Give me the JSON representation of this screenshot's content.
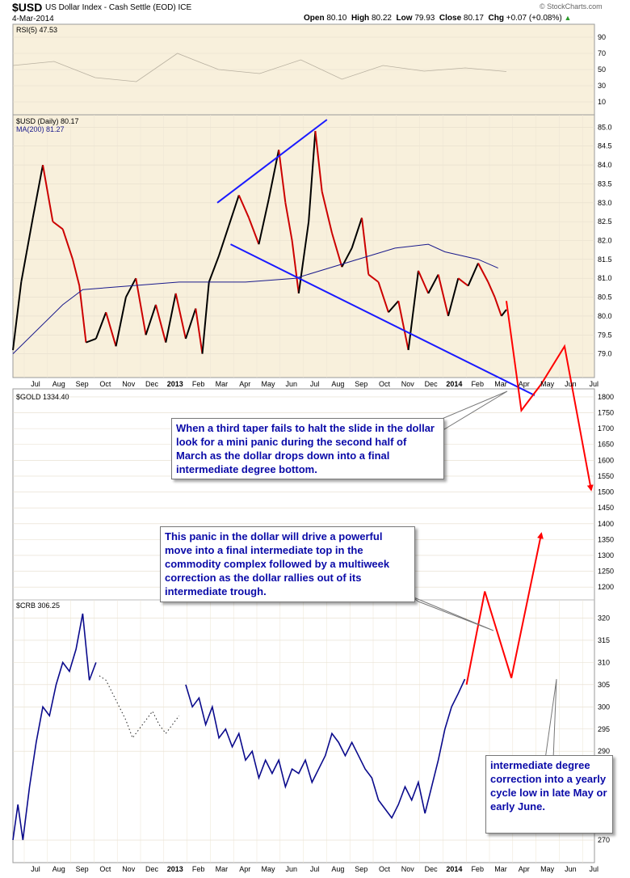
{
  "header": {
    "symbol": "$USD",
    "description": "US Dollar Index - Cash Settle (EOD) ICE",
    "date": "4-Mar-2014",
    "open_label": "Open",
    "open_value": "80.10",
    "high_label": "High",
    "high_value": "80.22",
    "low_label": "Low",
    "low_value": "79.93",
    "close_label": "Close",
    "close_value": "80.17",
    "chg_label": "Chg",
    "chg_value": "+0.07 (+0.08%)",
    "brand": "© StockCharts.com"
  },
  "colors": {
    "price_up": "#000000",
    "price_down": "#cc0000",
    "ma_line": "#1a1a8c",
    "crb_line": "#0a0a8c",
    "trendline": "#1a1aff",
    "projection": "#ff0000",
    "panel_bg": "#f8f0dc",
    "callout_text": "#0a0aa8"
  },
  "callouts": {
    "taper": "When a third taper fails to halt the slide in the dollar look for a mini panic during the second half of March as the dollar drops down into a final intermediate degree bottom.",
    "panic": "This panic in the dollar will drive a powerful move into a final intermediate top in the commodity complex followed by a multiweek correction as the dollar rallies out of its intermediate trough.",
    "correction": "intermediate degree correction into a yearly cycle low in late May or early June."
  },
  "chart_data": [
    {
      "type": "line",
      "panel": "rsi",
      "legend": "RSI(5) 47.53",
      "ylim": [
        0,
        100
      ],
      "y_ticks": [
        "90",
        "70",
        "50",
        "30",
        "10"
      ],
      "series": [
        {
          "values": [
            55,
            60,
            40,
            35,
            70,
            50,
            45,
            62,
            38,
            55,
            48,
            52,
            47.53
          ]
        }
      ]
    },
    {
      "type": "line",
      "panel": "usd",
      "legend": [
        "$USD (Daily) 80.17",
        "MA(200) 81.27"
      ],
      "ylim": [
        78.5,
        85.2
      ],
      "y_ticks": [
        "85.0",
        "84.5",
        "84.0",
        "83.5",
        "83.0",
        "82.5",
        "82.0",
        "81.5",
        "81.0",
        "80.5",
        "80.0",
        "79.5",
        "79.0"
      ],
      "x_ticks": [
        "Jul",
        "Aug",
        "Sep",
        "Oct",
        "Nov",
        "Dec",
        "2013",
        "Feb",
        "Mar",
        "Apr",
        "May",
        "Jun",
        "Jul",
        "Aug",
        "Sep",
        "Oct",
        "Nov",
        "Dec",
        "2014",
        "Feb",
        "Mar",
        "Apr",
        "May",
        "Jun",
        "Jul"
      ],
      "series": [
        {
          "name": "$USD",
          "values": [
            [
              0,
              79.1
            ],
            [
              5,
              80.9
            ],
            [
              12,
              82.6
            ],
            [
              18,
              84.0
            ],
            [
              24,
              82.5
            ],
            [
              30,
              82.3
            ],
            [
              36,
              81.5
            ],
            [
              40,
              80.8
            ],
            [
              44,
              79.3
            ],
            [
              50,
              79.4
            ],
            [
              56,
              80.1
            ],
            [
              62,
              79.2
            ],
            [
              68,
              80.5
            ],
            [
              74,
              81.0
            ],
            [
              80,
              79.5
            ],
            [
              86,
              80.3
            ],
            [
              92,
              79.3
            ],
            [
              98,
              80.6
            ],
            [
              104,
              79.4
            ],
            [
              110,
              80.2
            ],
            [
              114,
              79.0
            ],
            [
              118,
              80.9
            ],
            [
              124,
              81.6
            ],
            [
              130,
              82.4
            ],
            [
              136,
              83.2
            ],
            [
              142,
              82.6
            ],
            [
              148,
              81.9
            ],
            [
              154,
              83.1
            ],
            [
              160,
              84.4
            ],
            [
              164,
              83.0
            ],
            [
              168,
              82.0
            ],
            [
              172,
              80.6
            ],
            [
              178,
              82.5
            ],
            [
              182,
              84.9
            ],
            [
              186,
              83.3
            ],
            [
              192,
              82.2
            ],
            [
              198,
              81.3
            ],
            [
              204,
              81.8
            ],
            [
              210,
              82.6
            ],
            [
              214,
              81.1
            ],
            [
              220,
              80.9
            ],
            [
              226,
              80.1
            ],
            [
              232,
              80.4
            ],
            [
              238,
              79.1
            ],
            [
              244,
              81.2
            ],
            [
              250,
              80.6
            ],
            [
              256,
              81.1
            ],
            [
              262,
              80.0
            ],
            [
              268,
              81.0
            ],
            [
              274,
              80.8
            ],
            [
              280,
              81.4
            ],
            [
              286,
              80.9
            ],
            [
              290,
              80.5
            ],
            [
              294,
              80.0
            ],
            [
              297,
              80.17
            ]
          ]
        },
        {
          "name": "MA(200)",
          "values": [
            [
              0,
              79.0
            ],
            [
              30,
              80.3
            ],
            [
              42,
              80.7
            ],
            [
              100,
              80.9
            ],
            [
              140,
              80.9
            ],
            [
              170,
              81.0
            ],
            [
              200,
              81.4
            ],
            [
              230,
              81.8
            ],
            [
              250,
              81.9
            ],
            [
              260,
              81.7
            ],
            [
              280,
              81.5
            ],
            [
              292,
              81.27
            ]
          ]
        }
      ],
      "annotations": {
        "upper_trendline": [
          [
            123,
            83.0
          ],
          [
            189,
            85.2
          ]
        ],
        "lower_trendline": [
          [
            131,
            81.9
          ],
          [
            314,
            77.9
          ]
        ],
        "projection": [
          [
            297,
            80.4
          ],
          [
            306,
            77.5
          ],
          [
            318,
            78.2
          ],
          [
            332,
            79.2
          ],
          [
            348,
            75.4
          ]
        ]
      }
    },
    {
      "type": "line",
      "panel": "gold",
      "legend": "$GOLD 1334.40",
      "ylim": [
        1175,
        1810
      ],
      "y_ticks": [
        "1800",
        "1750",
        "1700",
        "1650",
        "1600",
        "1550",
        "1500",
        "1450",
        "1400",
        "1350",
        "1300",
        "1250",
        "1200"
      ]
    },
    {
      "type": "line",
      "panel": "crb",
      "legend": "$CRB 306.25",
      "ylim": [
        266,
        323
      ],
      "y_ticks": [
        "320",
        "315",
        "310",
        "305",
        "300",
        "295",
        "290",
        "270"
      ],
      "x_ticks": [
        "Jul",
        "Aug",
        "Sep",
        "Oct",
        "Nov",
        "Dec",
        "2013",
        "Feb",
        "Mar",
        "Apr",
        "May",
        "Jun",
        "Jul",
        "Aug",
        "Sep",
        "Oct",
        "Nov",
        "Dec",
        "2014",
        "Feb",
        "Mar",
        "Apr",
        "May",
        "Jun",
        "Jul"
      ],
      "series": [
        {
          "name": "$CRB",
          "values": [
            [
              0,
              270.0
            ],
            [
              3,
              278.0
            ],
            [
              6,
              270.0
            ],
            [
              10,
              282.0
            ],
            [
              14,
              292.0
            ],
            [
              18,
              300.0
            ],
            [
              22,
              298.0
            ],
            [
              26,
              305.0
            ],
            [
              30,
              310.0
            ],
            [
              34,
              308.0
            ],
            [
              38,
              313.0
            ],
            [
              42,
              321.0
            ],
            [
              46,
              306.0
            ],
            [
              50,
              310.0
            ],
            [
              104,
              305.0
            ],
            [
              108,
              300.0
            ],
            [
              112,
              302.0
            ],
            [
              116,
              296.0
            ],
            [
              120,
              300.0
            ],
            [
              124,
              293.0
            ],
            [
              128,
              295.0
            ],
            [
              132,
              291.0
            ],
            [
              136,
              294.0
            ],
            [
              140,
              288.0
            ],
            [
              144,
              290.0
            ],
            [
              148,
              284.0
            ],
            [
              152,
              288.0
            ],
            [
              156,
              285.0
            ],
            [
              160,
              288.0
            ],
            [
              164,
              282.0
            ],
            [
              168,
              286.0
            ],
            [
              172,
              285.0
            ],
            [
              176,
              288.0
            ],
            [
              180,
              283.0
            ],
            [
              184,
              286.0
            ],
            [
              188,
              289.0
            ],
            [
              192,
              294.0
            ],
            [
              196,
              292.0
            ],
            [
              200,
              289.0
            ],
            [
              204,
              292.0
            ],
            [
              208,
              289.0
            ],
            [
              212,
              286.0
            ],
            [
              216,
              284.0
            ],
            [
              220,
              279.0
            ],
            [
              224,
              277.0
            ],
            [
              228,
              275.0
            ],
            [
              232,
              278.0
            ],
            [
              236,
              282.0
            ],
            [
              240,
              279.0
            ],
            [
              244,
              283.0
            ],
            [
              248,
              276.0
            ],
            [
              252,
              282.0
            ],
            [
              256,
              288.0
            ],
            [
              260,
              295.0
            ],
            [
              264,
              300.0
            ],
            [
              268,
              303.0
            ],
            [
              272,
              306.25
            ]
          ]
        },
        {
          "name": "gap",
          "values": [
            [
              52,
              307.0
            ],
            [
              56,
              306.0
            ],
            [
              60,
              303.0
            ],
            [
              64,
              300.0
            ],
            [
              68,
              297.0
            ],
            [
              72,
              293.0
            ],
            [
              76,
              295.0
            ],
            [
              80,
              297.0
            ],
            [
              84,
              299.0
            ],
            [
              88,
              296.0
            ],
            [
              92,
              294.0
            ],
            [
              96,
              296.0
            ],
            [
              100,
              298.0
            ]
          ]
        }
      ],
      "annotations": {
        "projection": [
          [
            273,
            305.0
          ],
          [
            284,
            326.0
          ],
          [
            300,
            306.5
          ],
          [
            318,
            339.0
          ]
        ]
      }
    }
  ]
}
